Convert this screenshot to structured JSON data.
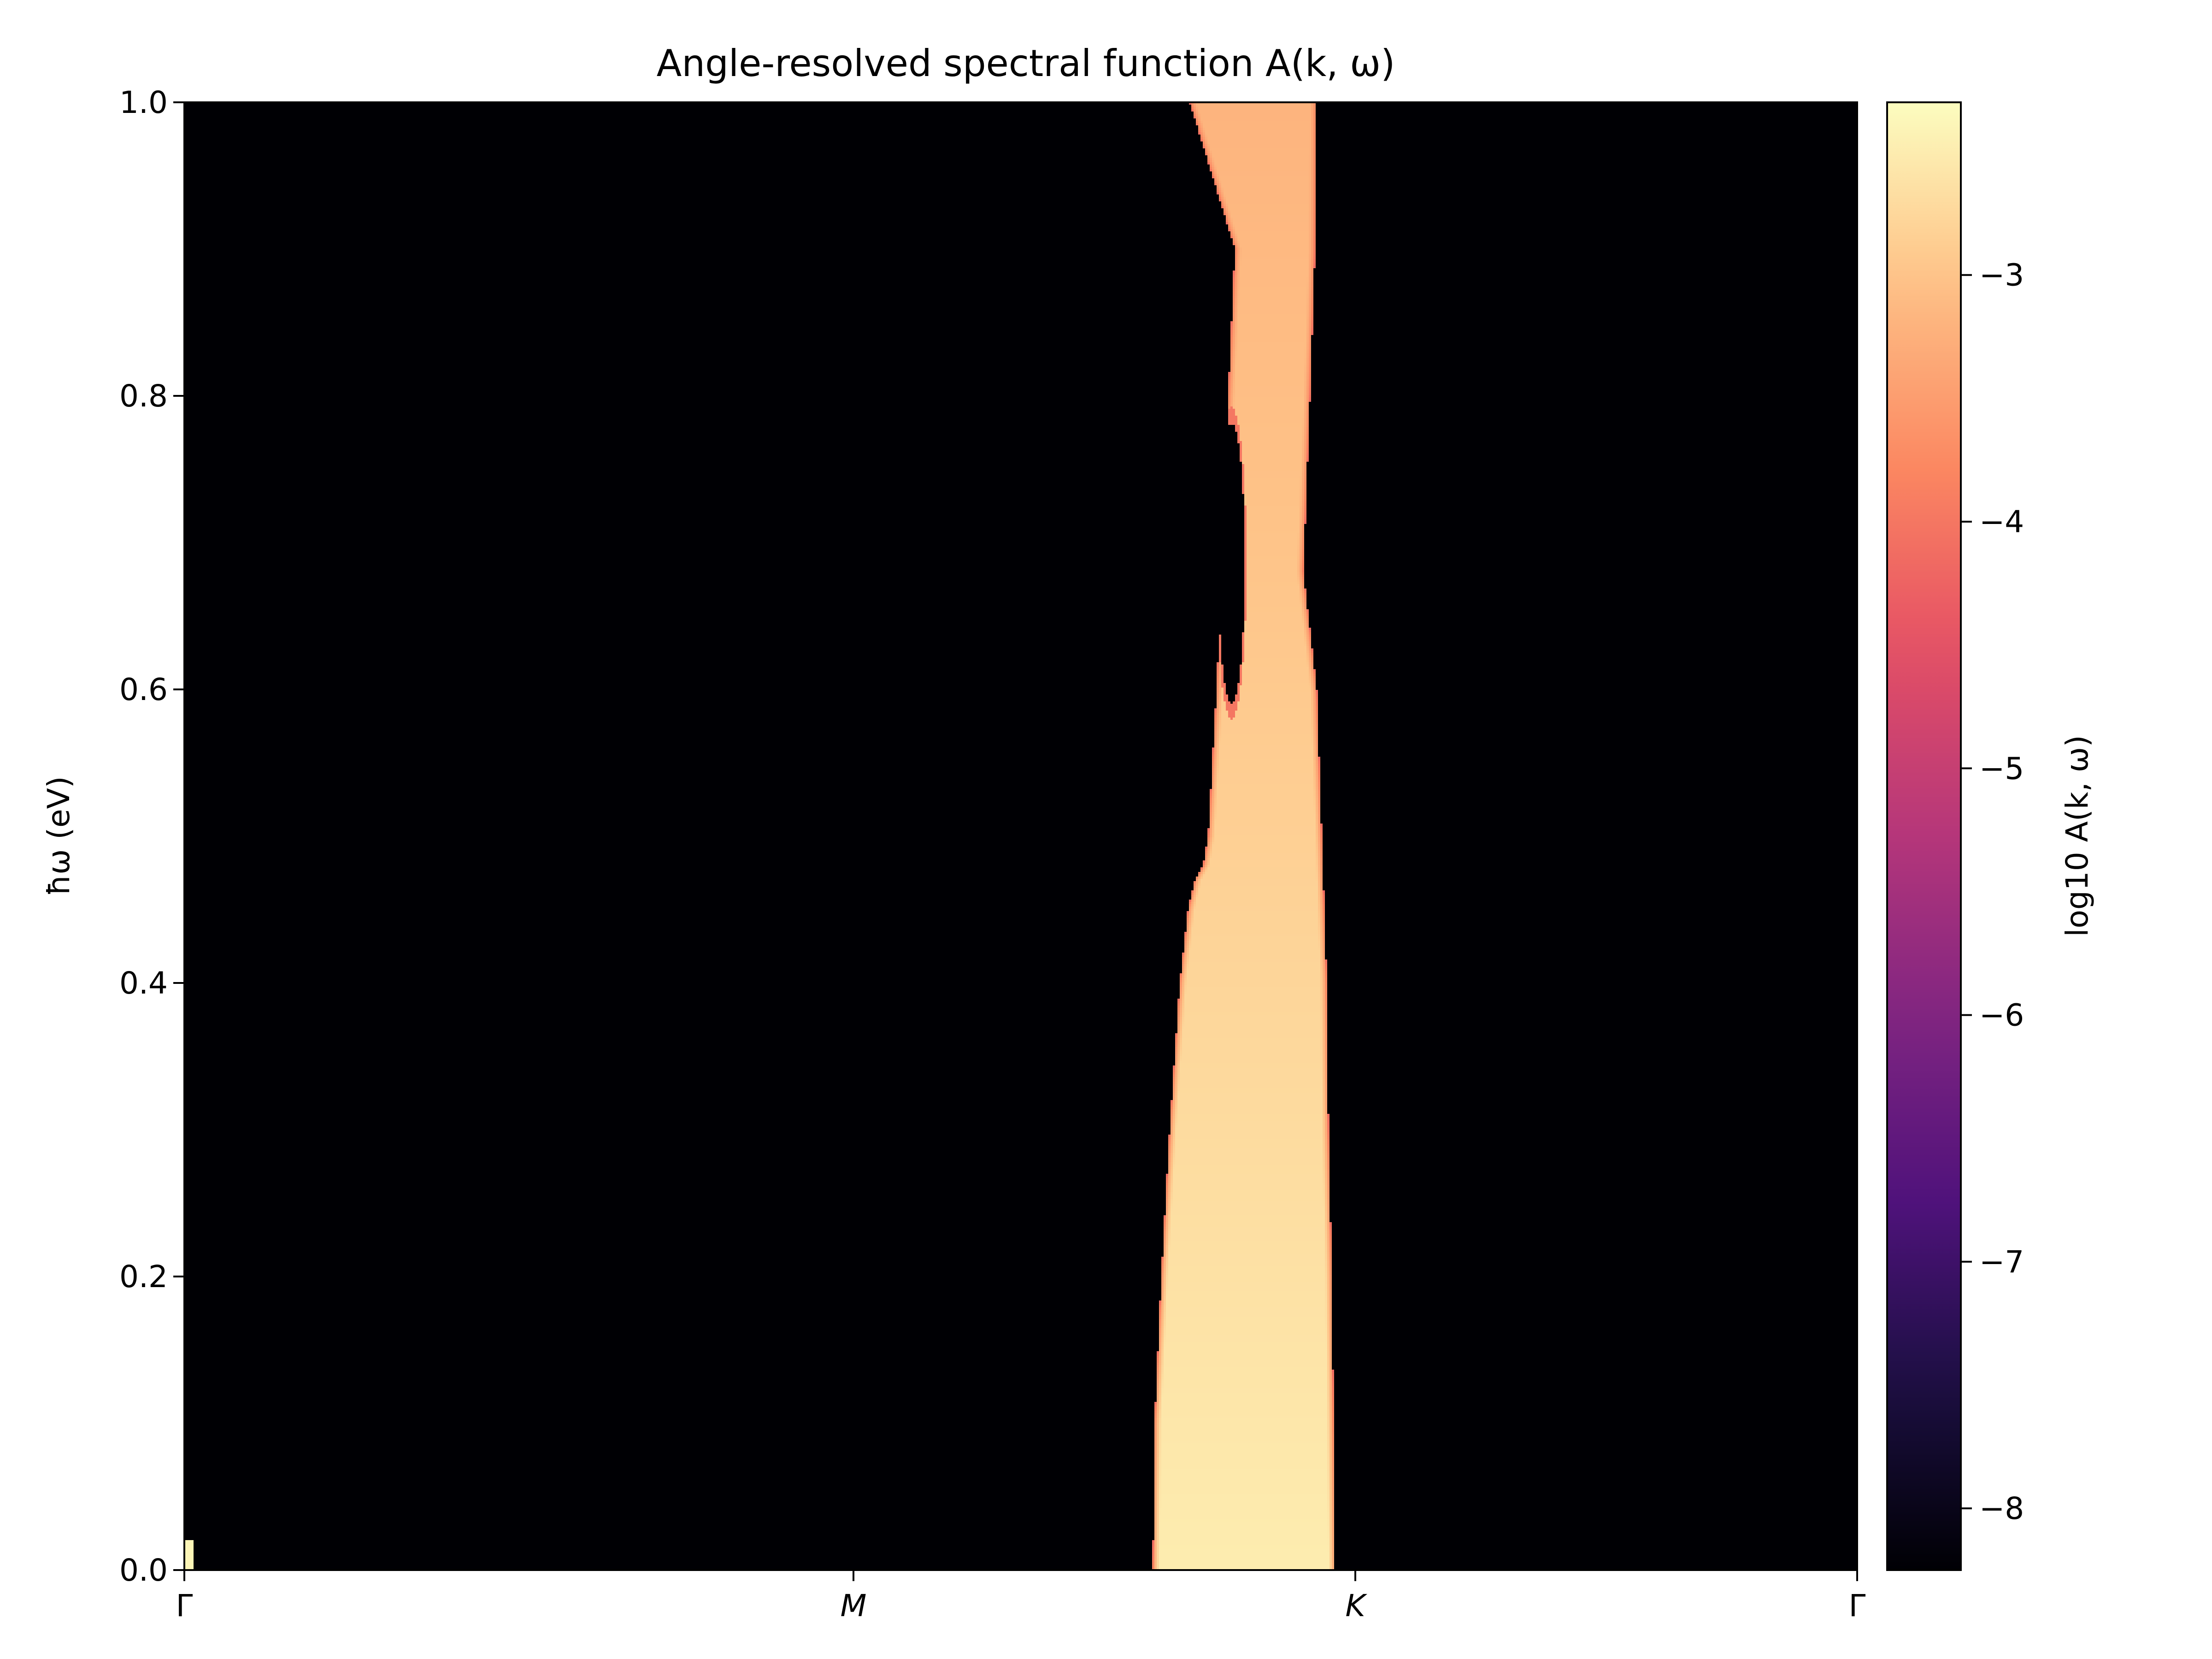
{
  "chart_data": {
    "type": "heatmap",
    "title": "Angle-resolved spectral function A(k, ω)",
    "xlabel": "",
    "ylabel": "ħω (eV)",
    "ylim": [
      0.0,
      1.0
    ],
    "x_ticks": [
      "Γ",
      "M",
      "K",
      "Γ"
    ],
    "x_tick_positions": [
      0.0,
      0.4,
      0.7,
      1.0
    ],
    "y_ticks": [
      "0.0",
      "0.2",
      "0.4",
      "0.6",
      "0.8",
      "1.0"
    ],
    "y_tick_values": [
      0.0,
      0.2,
      0.4,
      0.6,
      0.8,
      1.0
    ],
    "colorbar": {
      "label": "log10 A(k, ω)",
      "range": [
        -8.25,
        -2.3
      ],
      "ticks": [
        "−8",
        "−7",
        "−6",
        "−5",
        "−4",
        "−3"
      ],
      "tick_values": [
        -8,
        -7,
        -6,
        -5,
        -4,
        -3
      ],
      "colormap": "magma"
    },
    "background_value": -8.25,
    "features": [
      {
        "name": "main-band",
        "note_k_is_path_fraction": true,
        "left_edge": [
          [
            0.0,
            0.579
          ],
          [
            0.1,
            0.58
          ],
          [
            0.2,
            0.584
          ],
          [
            0.3,
            0.589
          ],
          [
            0.4,
            0.595
          ],
          [
            0.45,
            0.6
          ],
          [
            0.47,
            0.604
          ],
          [
            0.48,
            0.609
          ],
          [
            0.5,
            0.612
          ],
          [
            0.6,
            0.617
          ],
          [
            0.7,
            0.621
          ],
          [
            0.8,
            0.624
          ],
          [
            0.9,
            0.628
          ],
          [
            1.0,
            0.601
          ]
        ],
        "right_edge": [
          [
            0.0,
            0.688
          ],
          [
            0.1,
            0.687
          ],
          [
            0.2,
            0.686
          ],
          [
            0.3,
            0.684
          ],
          [
            0.4,
            0.683
          ],
          [
            0.5,
            0.68
          ],
          [
            0.6,
            0.677
          ],
          [
            0.68,
            0.669
          ],
          [
            0.8,
            0.673
          ],
          [
            0.9,
            0.676
          ],
          [
            1.0,
            0.677
          ]
        ],
        "value_low_w": -2.5,
        "value_high_w": -3.2,
        "edge_value": -4.2
      },
      {
        "name": "hole",
        "k_center": 0.626,
        "w_center": 0.686,
        "k_half_width": 0.008,
        "w_half_height": 0.095
      },
      {
        "name": "gamma-sliver",
        "k_range": [
          0.0,
          0.006
        ],
        "w_max": 0.02,
        "value": -2.4
      }
    ]
  }
}
